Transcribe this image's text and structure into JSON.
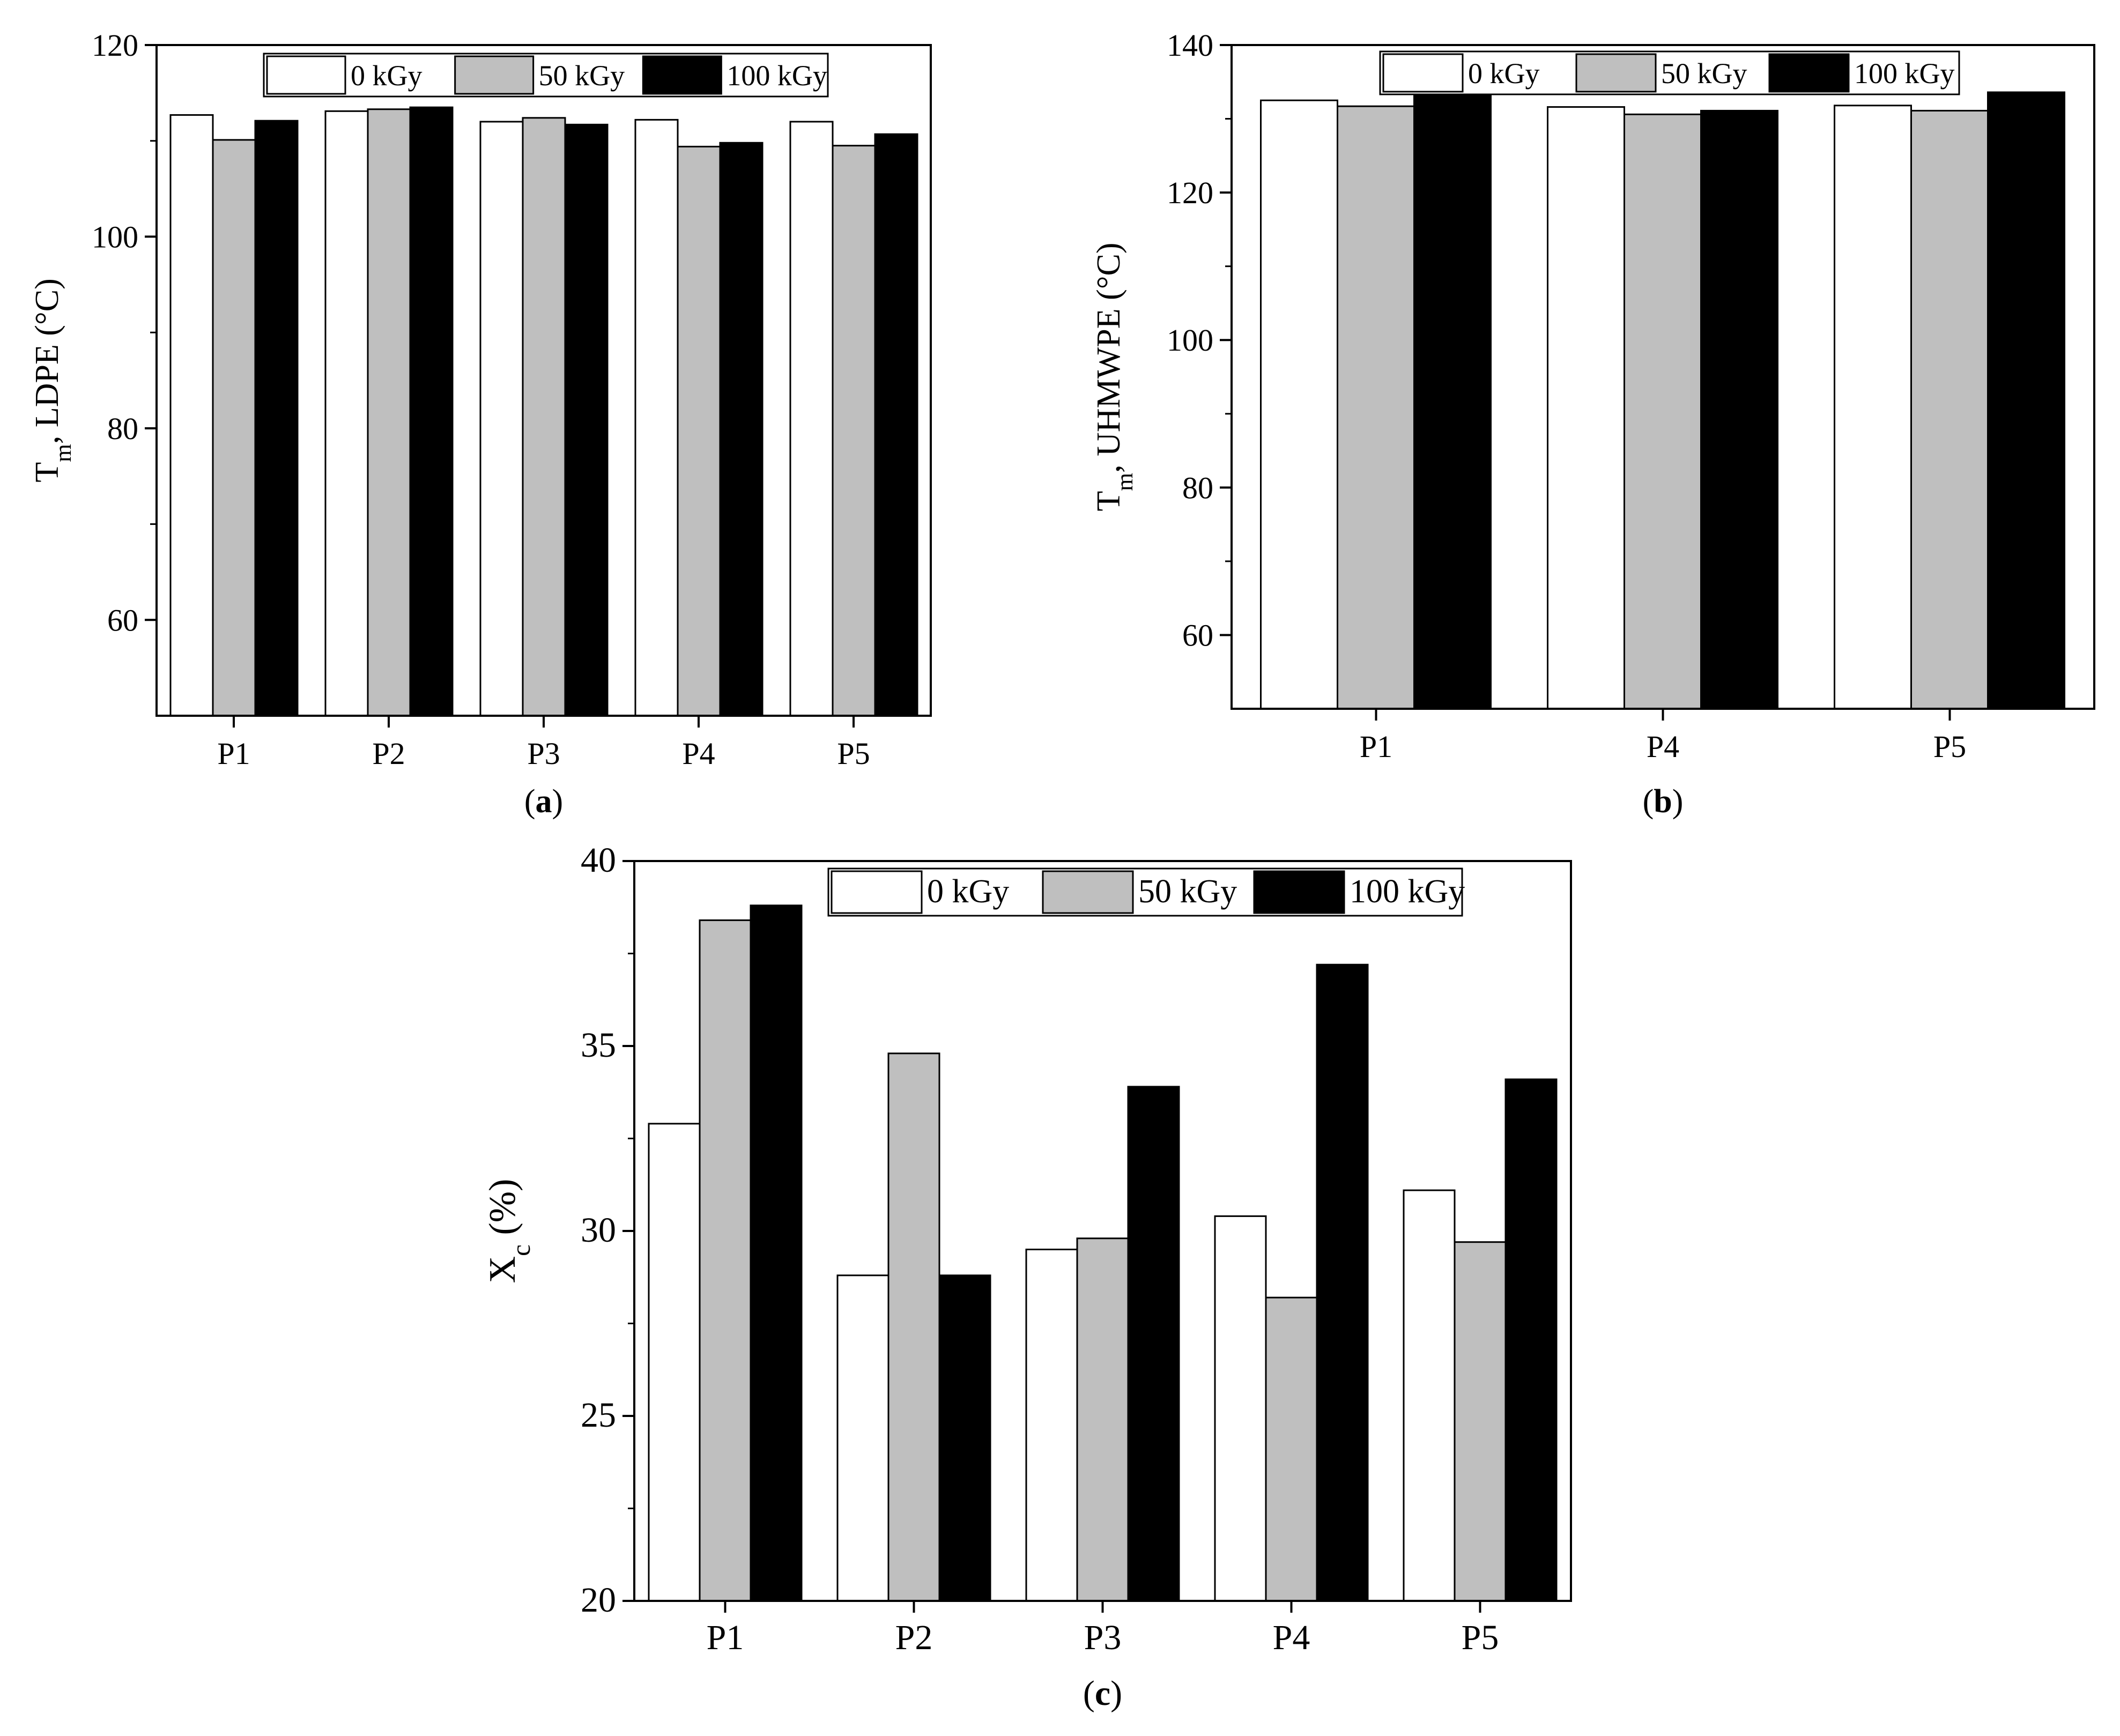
{
  "series_styles": [
    {
      "name": "0 kGy",
      "fill": "#ffffff"
    },
    {
      "name": "50 kGy",
      "fill": "#bfbfbf"
    },
    {
      "name": "100 kGy",
      "fill": "#000000"
    }
  ],
  "chart_data": [
    {
      "panel": "(a)",
      "type": "bar",
      "xlabel": "",
      "ylabel": "T_m, LDPE (°C)",
      "categories": [
        "P1",
        "P2",
        "P3",
        "P4",
        "P5"
      ],
      "ylim": [
        50,
        120
      ],
      "yticks": [
        60,
        80,
        100,
        120
      ],
      "legend_position": "top-center",
      "series": [
        {
          "name": "0 kGy",
          "values": [
            112.7,
            113.1,
            112.0,
            112.2,
            112.0
          ]
        },
        {
          "name": "50 kGy",
          "values": [
            110.1,
            113.3,
            112.4,
            109.4,
            109.5
          ]
        },
        {
          "name": "100 kGy",
          "values": [
            112.1,
            113.5,
            111.7,
            109.8,
            110.7
          ]
        }
      ]
    },
    {
      "panel": "(b)",
      "type": "bar",
      "xlabel": "",
      "ylabel": "T_m, UHMWPE (°C)",
      "categories": [
        "P1",
        "P4",
        "P5"
      ],
      "ylim": [
        50,
        140
      ],
      "yticks": [
        60,
        80,
        100,
        120,
        140
      ],
      "legend_position": "top-center",
      "series": [
        {
          "name": "0 kGy",
          "values": [
            132.5,
            131.6,
            131.8
          ]
        },
        {
          "name": "50 kGy",
          "values": [
            131.7,
            130.6,
            131.1
          ]
        },
        {
          "name": "100 kGy",
          "values": [
            133.2,
            131.1,
            133.6
          ]
        }
      ]
    },
    {
      "panel": "(c)",
      "type": "bar",
      "xlabel": "",
      "ylabel": "X_c (%)",
      "categories": [
        "P1",
        "P2",
        "P3",
        "P4",
        "P5"
      ],
      "ylim": [
        20,
        40
      ],
      "yticks": [
        20,
        25,
        30,
        35,
        40
      ],
      "legend_position": "top-center",
      "series": [
        {
          "name": "0 kGy",
          "values": [
            32.9,
            28.8,
            29.5,
            30.4,
            31.1
          ]
        },
        {
          "name": "50 kGy",
          "values": [
            38.4,
            34.8,
            29.8,
            28.2,
            29.7
          ]
        },
        {
          "name": "100 kGy",
          "values": [
            38.8,
            28.8,
            33.9,
            37.2,
            34.1
          ]
        }
      ]
    }
  ]
}
